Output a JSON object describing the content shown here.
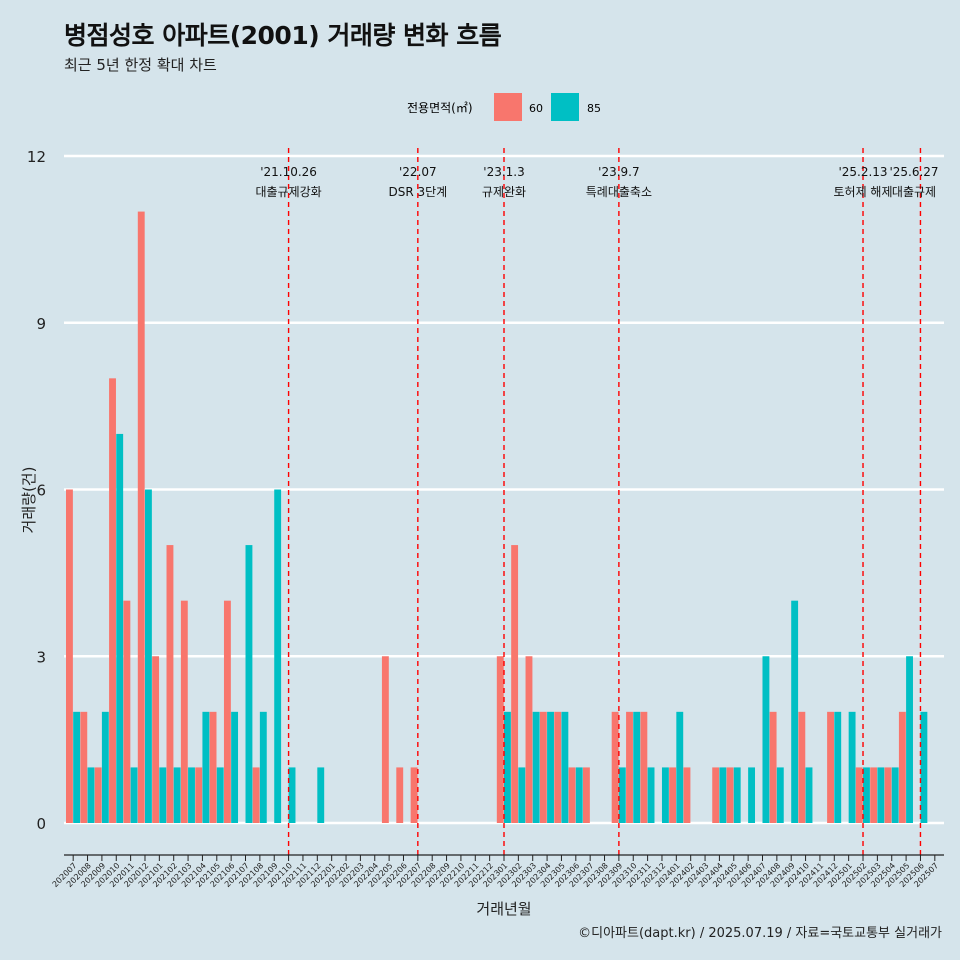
{
  "title": "병점성호 아파트(2001) 거래량 변화 흐름",
  "subtitle": "최근 5년 한정 확대 차트",
  "caption": "©디아파트(dapt.kr) / 2025.07.19 / 자료=국토교통부 실거래가",
  "chart_data": {
    "type": "bar",
    "xlabel": "거래년월",
    "ylabel": "거래량(건)",
    "ylim": [
      0,
      12
    ],
    "yticks": [
      0,
      3,
      6,
      9,
      12
    ],
    "legend": {
      "title": "전용면적(㎡)",
      "position": "top"
    },
    "categories": [
      "202007",
      "202008",
      "202009",
      "202010",
      "202011",
      "202012",
      "202101",
      "202102",
      "202103",
      "202104",
      "202105",
      "202106",
      "202107",
      "202108",
      "202109",
      "202110",
      "202111",
      "202112",
      "202201",
      "202202",
      "202203",
      "202204",
      "202205",
      "202206",
      "202207",
      "202208",
      "202209",
      "202210",
      "202211",
      "202212",
      "202301",
      "202302",
      "202303",
      "202304",
      "202305",
      "202306",
      "202307",
      "202308",
      "202309",
      "202310",
      "202311",
      "202312",
      "202401",
      "202402",
      "202403",
      "202404",
      "202405",
      "202406",
      "202407",
      "202408",
      "202409",
      "202410",
      "202411",
      "202412",
      "202501",
      "202502",
      "202503",
      "202504",
      "202505",
      "202506",
      "202507"
    ],
    "series": [
      {
        "name": "60",
        "color": "#f8766d",
        "values": [
          6,
          2,
          1,
          8,
          4,
          11,
          3,
          5,
          4,
          1,
          2,
          4,
          0,
          1,
          0,
          0,
          0,
          0,
          0,
          0,
          0,
          0,
          3,
          1,
          1,
          0,
          0,
          0,
          0,
          0,
          3,
          5,
          3,
          2,
          2,
          1,
          1,
          0,
          2,
          2,
          2,
          0,
          1,
          1,
          0,
          1,
          1,
          0,
          0,
          2,
          0,
          2,
          0,
          2,
          0,
          1,
          1,
          1,
          2,
          0,
          0
        ]
      },
      {
        "name": "85",
        "color": "#00bfc4",
        "values": [
          2,
          1,
          2,
          7,
          1,
          6,
          1,
          1,
          1,
          2,
          1,
          2,
          5,
          2,
          6,
          1,
          0,
          1,
          0,
          0,
          0,
          0,
          0,
          0,
          0,
          0,
          0,
          0,
          0,
          0,
          2,
          1,
          2,
          2,
          2,
          1,
          0,
          0,
          1,
          2,
          1,
          1,
          2,
          0,
          0,
          1,
          1,
          1,
          3,
          1,
          4,
          1,
          0,
          2,
          2,
          1,
          1,
          1,
          3,
          2,
          0
        ]
      }
    ],
    "events": [
      {
        "date": "'21.10.26",
        "label": "대출규제강화",
        "position": 15
      },
      {
        "date": "'22.07",
        "label": "DSR 3단계",
        "position": 24
      },
      {
        "date": "'23.1.3",
        "label": "규제완화",
        "position": 30
      },
      {
        "date": "'23.9.7",
        "label": "특례대출축소",
        "position": 38
      },
      {
        "date": "'25.2.13",
        "label": "토허제 해제",
        "position": 55
      },
      {
        "date": "'25.6.27",
        "label": "대출규제",
        "position": 59
      }
    ]
  }
}
